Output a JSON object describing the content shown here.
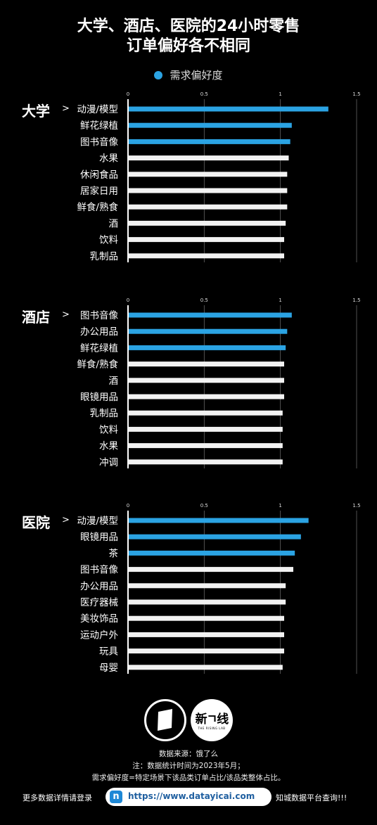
{
  "title_line1": "大学、酒店、医院的24小时零售",
  "title_line2": "订单偏好各不相同",
  "legend_label": "需求偏好度",
  "colors": {
    "highlight": "#2ba3e3",
    "normal": "#f2f2f2",
    "background": "#000000"
  },
  "chart_data": [
    {
      "type": "bar",
      "orientation": "horizontal",
      "title": "大学",
      "ticks": [
        "0",
        "0.5",
        "1",
        "1.5"
      ],
      "xlim": [
        0,
        1.5
      ],
      "categories": [
        "动漫/模型",
        "鲜花绿植",
        "图书音像",
        "水果",
        "休闲食品",
        "居家日用",
        "鲜食/熟食",
        "酒",
        "饮料",
        "乳制品"
      ],
      "values": [
        1.31,
        1.07,
        1.06,
        1.05,
        1.04,
        1.04,
        1.04,
        1.03,
        1.02,
        1.02
      ],
      "highlighted": [
        true,
        true,
        true,
        false,
        false,
        false,
        false,
        false,
        false,
        false
      ]
    },
    {
      "type": "bar",
      "orientation": "horizontal",
      "title": "酒店",
      "ticks": [
        "0",
        "0.5",
        "1",
        "1.5"
      ],
      "xlim": [
        0,
        1.5
      ],
      "categories": [
        "图书音像",
        "办公用品",
        "鲜花绿植",
        "鲜食/熟食",
        "酒",
        "眼镜用品",
        "乳制品",
        "饮料",
        "水果",
        "冲调"
      ],
      "values": [
        1.07,
        1.04,
        1.03,
        1.02,
        1.02,
        1.02,
        1.01,
        1.01,
        1.01,
        1.01
      ],
      "highlighted": [
        true,
        true,
        true,
        false,
        false,
        false,
        false,
        false,
        false,
        false
      ]
    },
    {
      "type": "bar",
      "orientation": "horizontal",
      "title": "医院",
      "ticks": [
        "0",
        "0.5",
        "1",
        "1.5"
      ],
      "xlim": [
        0,
        1.5
      ],
      "categories": [
        "动漫/模型",
        "眼镜用品",
        "茶",
        "图书音像",
        "办公用品",
        "医疗器械",
        "美妆饰品",
        "运动户外",
        "玩具",
        "母婴"
      ],
      "values": [
        1.18,
        1.13,
        1.09,
        1.08,
        1.03,
        1.03,
        1.02,
        1.02,
        1.02,
        1.01
      ],
      "highlighted": [
        true,
        true,
        true,
        false,
        false,
        false,
        false,
        false,
        false,
        false
      ]
    }
  ],
  "arrow_glyph": ">",
  "logo2_text": "新ㄱ线",
  "logo2_subtext": "THE RISING LAB",
  "source_line": "数据来源：饿了么",
  "note_line": "注：数据统计时间为2023年5月；",
  "definition_line": "需求偏好度=特定场景下该品类订单占比/该品类整体占比。",
  "bottom_left": "更多数据详情请登录",
  "url": "https://www.datayicai.com",
  "url_icon": "n",
  "bottom_right": "知城数据平台查询!!!"
}
